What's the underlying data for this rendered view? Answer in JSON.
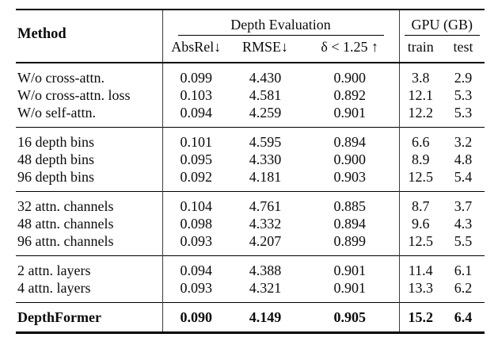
{
  "title": "DepthFormer ablation study table",
  "colors": {
    "background": "#ffffff",
    "text": "#0b0b0b",
    "rule": "#000000",
    "bar": "#3c3c3c"
  },
  "header": {
    "method": "Method",
    "depth_group": "Depth Evaluation",
    "gpu_group": "GPU (GB)",
    "absrel": "AbsRel↓",
    "rmse": "RMSE↓",
    "delta": "δ < 1.25 ↑",
    "train": "train",
    "test": "test"
  },
  "groups": [
    {
      "name": "attention-ablation",
      "rows": [
        {
          "method": "W/o cross-attn.",
          "absrel": "0.099",
          "rmse": "4.430",
          "delta": "0.900",
          "train": "3.8",
          "test": "2.9"
        },
        {
          "method": "W/o cross-attn. loss",
          "absrel": "0.103",
          "rmse": "4.581",
          "delta": "0.892",
          "train": "12.1",
          "test": "5.3"
        },
        {
          "method": "W/o self-attn.",
          "absrel": "0.094",
          "rmse": "4.259",
          "delta": "0.901",
          "train": "12.2",
          "test": "5.3"
        }
      ]
    },
    {
      "name": "depth-bins",
      "rows": [
        {
          "method": "16 depth bins",
          "absrel": "0.101",
          "rmse": "4.595",
          "delta": "0.894",
          "train": "6.6",
          "test": "3.2"
        },
        {
          "method": "48 depth bins",
          "absrel": "0.095",
          "rmse": "4.330",
          "delta": "0.900",
          "train": "8.9",
          "test": "4.8"
        },
        {
          "method": "96 depth bins",
          "absrel": "0.092",
          "rmse": "4.181",
          "delta": "0.903",
          "train": "12.5",
          "test": "5.4"
        }
      ]
    },
    {
      "name": "attn-channels",
      "rows": [
        {
          "method": "32 attn. channels",
          "absrel": "0.104",
          "rmse": "4.761",
          "delta": "0.885",
          "train": "8.7",
          "test": "3.7"
        },
        {
          "method": "48 attn. channels",
          "absrel": "0.098",
          "rmse": "4.332",
          "delta": "0.894",
          "train": "9.6",
          "test": "4.3"
        },
        {
          "method": "96 attn. channels",
          "absrel": "0.093",
          "rmse": "4.207",
          "delta": "0.899",
          "train": "12.5",
          "test": "5.5"
        }
      ]
    },
    {
      "name": "attn-layers",
      "rows": [
        {
          "method": "2 attn. layers",
          "absrel": "0.094",
          "rmse": "4.388",
          "delta": "0.901",
          "train": "11.4",
          "test": "6.1"
        },
        {
          "method": "4 attn. layers",
          "absrel": "0.093",
          "rmse": "4.321",
          "delta": "0.901",
          "train": "13.3",
          "test": "6.2"
        }
      ]
    },
    {
      "name": "final",
      "rows": [
        {
          "method": "DepthFormer",
          "absrel": "0.090",
          "rmse": "4.149",
          "delta": "0.905",
          "train": "15.2",
          "test": "6.4"
        }
      ]
    }
  ]
}
